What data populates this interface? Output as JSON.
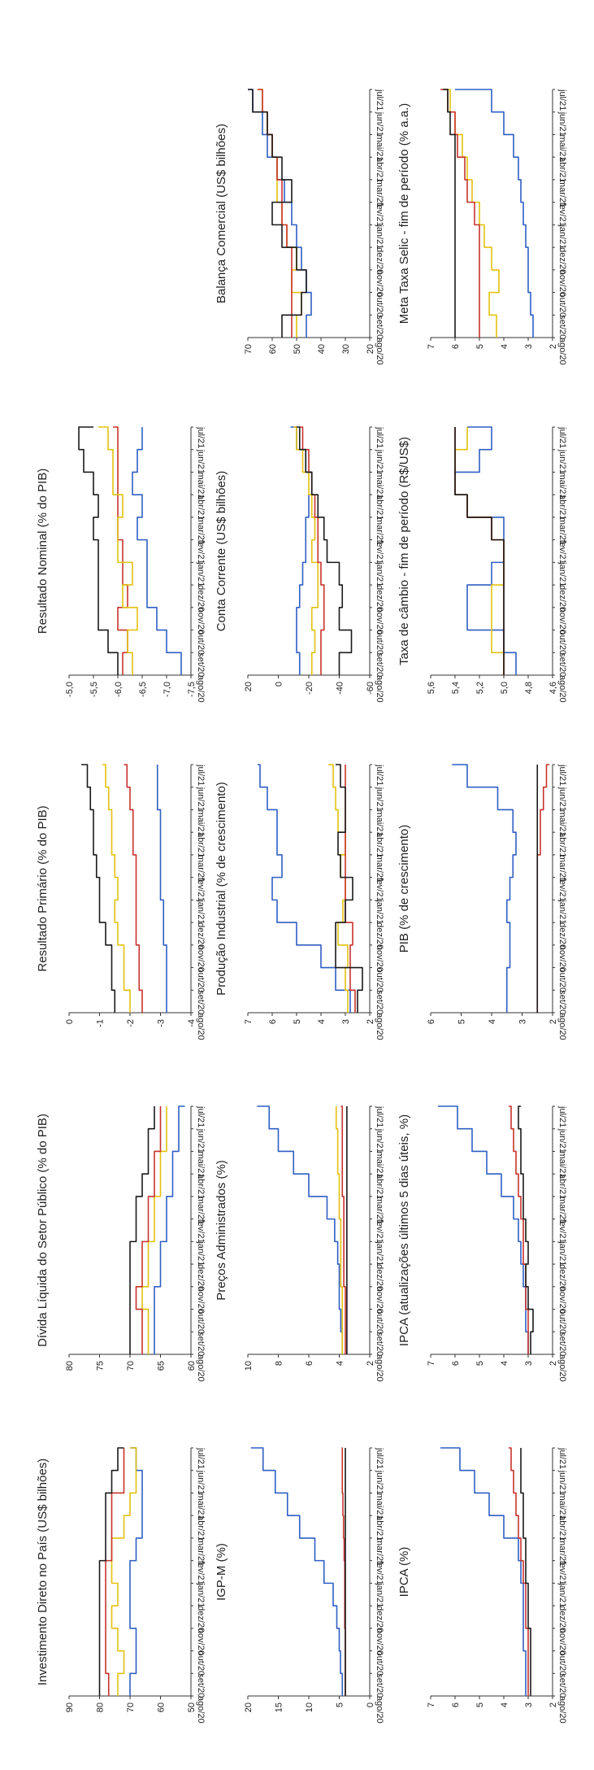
{
  "colors": {
    "blue": "#2f5fc4",
    "red": "#c8332c",
    "yellow": "#e3c10f",
    "black": "#1a1a1a",
    "axis": "#333333"
  },
  "months": [
    "ago/20",
    "set/20",
    "out/20",
    "nov/20",
    "dez/20",
    "jan/21",
    "fev/21",
    "mar/21",
    "abr/21",
    "mai/21",
    "jun/21",
    "jul/21"
  ],
  "chart_data": [
    {
      "id": "ipca",
      "type": "line",
      "title": "IPCA (%)",
      "ylim": [
        2,
        7
      ],
      "yticks": [
        "2",
        "3",
        "4",
        "5",
        "6",
        "7"
      ],
      "series": [
        {
          "color": "blue",
          "values": [
            3.1,
            3.1,
            3.2,
            3.2,
            3.2,
            3.3,
            3.4,
            4.0,
            4.6,
            5.2,
            5.8,
            6.6
          ]
        },
        {
          "color": "red",
          "values": [
            3.0,
            3.0,
            3.0,
            3.1,
            3.1,
            3.2,
            3.3,
            3.4,
            3.5,
            3.6,
            3.7,
            3.8
          ]
        },
        {
          "color": "black",
          "values": [
            2.9,
            2.9,
            2.9,
            3.0,
            3.0,
            3.1,
            3.1,
            3.2,
            3.2,
            3.3,
            3.3,
            3.3
          ]
        }
      ]
    },
    {
      "id": "ipca5",
      "type": "line",
      "title": "IPCA (atualizações últimos 5 dias úteis, %)",
      "ylim": [
        2,
        7
      ],
      "yticks": [
        "2",
        "3",
        "4",
        "5",
        "6",
        "7"
      ],
      "series": [
        {
          "color": "blue",
          "values": [
            3.0,
            3.1,
            3.1,
            3.2,
            3.3,
            3.4,
            3.6,
            4.1,
            4.7,
            5.3,
            5.9,
            6.7
          ]
        },
        {
          "color": "red",
          "values": [
            3.0,
            3.0,
            3.1,
            3.1,
            3.2,
            3.2,
            3.3,
            3.4,
            3.5,
            3.6,
            3.7,
            3.8
          ]
        },
        {
          "color": "black",
          "values": [
            2.9,
            2.8,
            3.0,
            3.1,
            3.0,
            3.1,
            3.2,
            3.2,
            3.3,
            3.3,
            3.4,
            3.3
          ]
        }
      ]
    },
    {
      "id": "pib",
      "type": "line",
      "title": "PIB (% de crescimento)",
      "ylim": [
        2,
        6
      ],
      "yticks": [
        "2",
        "3",
        "4",
        "5",
        "6"
      ],
      "series": [
        {
          "color": "blue",
          "values": [
            3.5,
            3.5,
            3.4,
            3.4,
            3.5,
            3.4,
            3.3,
            3.2,
            3.3,
            3.8,
            4.8,
            5.3
          ]
        },
        {
          "color": "red",
          "values": [
            2.5,
            2.5,
            2.5,
            2.5,
            2.5,
            2.5,
            2.5,
            2.4,
            2.4,
            2.3,
            2.2,
            2.1
          ]
        },
        {
          "color": "black",
          "values": [
            2.5,
            2.5,
            2.5,
            2.5,
            2.5,
            2.5,
            2.5,
            2.5,
            2.5,
            2.5,
            2.5,
            2.5
          ]
        }
      ]
    },
    {
      "id": "cambio",
      "type": "line",
      "title": "Taxa de câmbio - fim de período (R$/US$)",
      "ylim": [
        4.6,
        5.6
      ],
      "yticks": [
        "4,6",
        "4,8",
        "5,0",
        "5,2",
        "5,4",
        "5,6"
      ],
      "series": [
        {
          "color": "blue",
          "values": [
            4.9,
            5.0,
            5.3,
            5.3,
            5.1,
            5.0,
            5.0,
            5.3,
            5.4,
            5.2,
            5.1,
            5.3
          ]
        },
        {
          "color": "yellow",
          "values": [
            5.0,
            5.1,
            5.1,
            5.1,
            5.0,
            5.0,
            5.1,
            5.3,
            5.4,
            5.4,
            5.3,
            5.3
          ]
        },
        {
          "color": "red",
          "values": [
            5.0,
            5.0,
            5.0,
            5.0,
            5.0,
            5.0,
            5.1,
            5.3,
            5.4,
            5.4,
            5.4,
            5.4
          ]
        },
        {
          "color": "black",
          "values": [
            5.0,
            5.0,
            5.0,
            5.0,
            5.0,
            5.0,
            5.1,
            5.3,
            5.4,
            5.4,
            5.4,
            5.4
          ]
        }
      ]
    },
    {
      "id": "selic",
      "type": "line",
      "title": "Meta Taxa Selic - fim de período (% a.a.)",
      "ylim": [
        2,
        7
      ],
      "yticks": [
        "2",
        "3",
        "4",
        "5",
        "6",
        "7"
      ],
      "series": [
        {
          "color": "blue",
          "values": [
            2.8,
            2.9,
            3.0,
            3.0,
            3.1,
            3.2,
            3.3,
            3.4,
            3.6,
            4.0,
            4.5,
            6.0
          ]
        },
        {
          "color": "yellow",
          "values": [
            4.3,
            4.6,
            4.2,
            4.5,
            4.8,
            5.0,
            5.3,
            5.5,
            5.7,
            6.0,
            6.2,
            6.5
          ]
        },
        {
          "color": "red",
          "values": [
            5.0,
            5.0,
            5.0,
            5.0,
            5.0,
            5.2,
            5.5,
            5.6,
            5.9,
            6.0,
            6.3,
            6.6
          ]
        },
        {
          "color": "black",
          "values": [
            6.0,
            6.0,
            6.0,
            6.0,
            6.0,
            6.0,
            6.0,
            6.0,
            6.0,
            6.2,
            6.3,
            6.5
          ]
        }
      ]
    },
    {
      "id": "igpm",
      "type": "line",
      "title": "IGP-M (%)",
      "ylim": [
        0,
        20
      ],
      "yticks": [
        "0",
        "5",
        "10",
        "15",
        "20"
      ],
      "series": [
        {
          "color": "blue",
          "values": [
            4.5,
            4.8,
            5.0,
            5.4,
            6.0,
            7.5,
            9.0,
            11.5,
            13.5,
            15.5,
            17.5,
            19.5
          ]
        },
        {
          "color": "red",
          "values": [
            4.0,
            4.0,
            4.0,
            4.1,
            4.1,
            4.1,
            4.2,
            4.3,
            4.4,
            4.5,
            4.5,
            4.6
          ]
        },
        {
          "color": "black",
          "values": [
            4.0,
            4.0,
            4.0,
            4.0,
            4.0,
            4.0,
            4.0,
            4.0,
            4.0,
            4.0,
            4.0,
            4.0
          ]
        }
      ]
    },
    {
      "id": "adm",
      "type": "line",
      "title": "Preços Administrados (%)",
      "ylim": [
        2,
        10
      ],
      "yticks": [
        "2",
        "4",
        "6",
        "8",
        "10"
      ],
      "series": [
        {
          "color": "blue",
          "values": [
            3.8,
            3.9,
            4.0,
            4.0,
            4.1,
            4.3,
            4.8,
            6.0,
            7.0,
            8.0,
            8.6,
            9.4
          ]
        },
        {
          "color": "yellow",
          "values": [
            3.8,
            3.8,
            3.8,
            3.9,
            3.9,
            3.9,
            4.0,
            4.0,
            4.1,
            4.1,
            4.2,
            4.2
          ]
        },
        {
          "color": "red",
          "values": [
            3.6,
            3.6,
            3.6,
            3.7,
            3.7,
            3.7,
            3.7,
            3.8,
            3.8,
            3.8,
            3.8,
            3.9
          ]
        },
        {
          "color": "black",
          "values": [
            3.5,
            3.5,
            3.5,
            3.5,
            3.5,
            3.5,
            3.5,
            3.5,
            3.5,
            3.5,
            3.5,
            3.5
          ]
        }
      ]
    },
    {
      "id": "prodind",
      "type": "line",
      "title": "Produção Industrial (% de crescimento)",
      "ylim": [
        2,
        7
      ],
      "yticks": [
        "2",
        "3",
        "4",
        "5",
        "6",
        "7"
      ],
      "series": [
        {
          "color": "blue",
          "values": [
            2.8,
            3.4,
            4.0,
            5.0,
            5.8,
            6.0,
            5.6,
            5.8,
            5.8,
            6.2,
            6.5,
            6.6
          ]
        },
        {
          "color": "yellow",
          "values": [
            2.9,
            3.0,
            2.9,
            3.3,
            3.1,
            3.0,
            3.2,
            3.0,
            3.3,
            3.4,
            3.5,
            3.7
          ]
        },
        {
          "color": "red",
          "values": [
            2.6,
            2.8,
            2.8,
            2.7,
            3.0,
            3.0,
            3.0,
            3.0,
            3.0,
            3.0,
            3.0,
            3.0
          ]
        },
        {
          "color": "black",
          "values": [
            2.5,
            2.3,
            3.4,
            3.4,
            3.0,
            2.7,
            3.2,
            3.3,
            3.0,
            3.0,
            3.2,
            3.4
          ]
        }
      ]
    },
    {
      "id": "contacorr",
      "type": "line",
      "title": "Conta Corrente (US$ bilhões)",
      "ylim": [
        -60,
        20
      ],
      "yticks": [
        "-60",
        "-40",
        "-20",
        "0",
        "20"
      ],
      "series": [
        {
          "color": "blue",
          "values": [
            -14,
            -12,
            -12,
            -14,
            -16,
            -18,
            -18,
            -20,
            -22,
            -18,
            -12,
            -8
          ]
        },
        {
          "color": "yellow",
          "values": [
            -22,
            -24,
            -22,
            -26,
            -26,
            -22,
            -24,
            -22,
            -20,
            -16,
            -12,
            -10
          ]
        },
        {
          "color": "red",
          "values": [
            -28,
            -28,
            -30,
            -30,
            -28,
            -26,
            -26,
            -24,
            -22,
            -20,
            -16,
            -14
          ]
        },
        {
          "color": "black",
          "values": [
            -40,
            -48,
            -40,
            -42,
            -40,
            -32,
            -30,
            -26,
            -22,
            -18,
            -14,
            -12
          ]
        }
      ]
    },
    {
      "id": "balanca",
      "type": "line",
      "title": "Balança Comercial (US$ bilhões)",
      "ylim": [
        20,
        70
      ],
      "yticks": [
        "20",
        "30",
        "40",
        "50",
        "60",
        "70"
      ],
      "series": [
        {
          "color": "blue",
          "values": [
            46,
            44,
            46,
            48,
            50,
            52,
            55,
            58,
            62,
            64,
            68,
            70
          ]
        },
        {
          "color": "yellow",
          "values": [
            50,
            48,
            52,
            50,
            54,
            56,
            58,
            58,
            60,
            62,
            64,
            66
          ]
        },
        {
          "color": "red",
          "values": [
            52,
            52,
            52,
            52,
            54,
            56,
            56,
            58,
            60,
            62,
            64,
            66
          ]
        },
        {
          "color": "black",
          "values": [
            56,
            48,
            46,
            50,
            56,
            60,
            52,
            56,
            60,
            62,
            68,
            70
          ]
        }
      ]
    },
    {
      "id": "idp",
      "type": "line",
      "title": "Investimento Direto no País (US$ bilhões)",
      "ylim": [
        50,
        90
      ],
      "yticks": [
        "50",
        "60",
        "70",
        "80",
        "90"
      ],
      "series": [
        {
          "color": "blue",
          "values": [
            70,
            68,
            68,
            70,
            70,
            70,
            68,
            66,
            66,
            66,
            68,
            70
          ]
        },
        {
          "color": "yellow",
          "values": [
            74,
            72,
            74,
            76,
            74,
            76,
            76,
            72,
            70,
            68,
            68,
            70
          ]
        },
        {
          "color": "red",
          "values": [
            77,
            78,
            78,
            78,
            78,
            78,
            76,
            76,
            76,
            72,
            72,
            72
          ]
        },
        {
          "color": "black",
          "values": [
            80,
            80,
            80,
            80,
            80,
            80,
            78,
            78,
            78,
            76,
            74,
            72
          ]
        }
      ]
    },
    {
      "id": "divida",
      "type": "line",
      "title": "Dívida Líquida do Setor Público (% do PIB)",
      "ylim": [
        60,
        80
      ],
      "yticks": [
        "60",
        "65",
        "70",
        "75",
        "80"
      ],
      "series": [
        {
          "color": "blue",
          "values": [
            66,
            66,
            66,
            65,
            65,
            64,
            64,
            63,
            63,
            62,
            62,
            61
          ]
        },
        {
          "color": "yellow",
          "values": [
            67,
            67,
            68,
            67,
            67,
            66,
            66,
            65,
            65,
            64,
            64,
            64
          ]
        },
        {
          "color": "red",
          "values": [
            68,
            68,
            69,
            68,
            68,
            67,
            67,
            66,
            66,
            65,
            65,
            65
          ]
        },
        {
          "color": "black",
          "values": [
            70,
            70,
            70,
            70,
            70,
            69,
            69,
            68,
            67,
            67,
            66,
            66
          ]
        }
      ]
    },
    {
      "id": "primario",
      "type": "line",
      "title": "Resultado Primário (% do PIB)",
      "ylim": [
        -4,
        0
      ],
      "yticks": [
        "-4",
        "-3",
        "-2",
        "-1",
        "0"
      ],
      "series": [
        {
          "color": "blue",
          "values": [
            -3.2,
            -3.2,
            -3.2,
            -3.1,
            -3.1,
            -3.0,
            -3.0,
            -3.0,
            -3.0,
            -2.9,
            -2.9,
            -2.9
          ]
        },
        {
          "color": "red",
          "values": [
            -2.4,
            -2.3,
            -2.3,
            -2.2,
            -2.2,
            -2.2,
            -2.2,
            -2.1,
            -2.1,
            -2.0,
            -1.9,
            -1.8
          ]
        },
        {
          "color": "yellow",
          "values": [
            -2.0,
            -1.8,
            -1.8,
            -1.6,
            -1.5,
            -1.6,
            -1.5,
            -1.4,
            -1.4,
            -1.3,
            -1.2,
            -1.1
          ]
        },
        {
          "color": "black",
          "values": [
            -1.5,
            -1.4,
            -1.4,
            -1.2,
            -1.0,
            -1.0,
            -0.9,
            -0.8,
            -0.8,
            -0.7,
            -0.6,
            -0.4
          ]
        }
      ]
    },
    {
      "id": "nominal",
      "type": "line",
      "title": "Resultado Nominal (% do PIB)",
      "ylim": [
        -7.5,
        -5.0
      ],
      "yticks": [
        "-7,5",
        "-7,0",
        "-6,5",
        "-6,0",
        "-5,5",
        "-5,0"
      ],
      "series": [
        {
          "color": "blue",
          "values": [
            -7.3,
            -7.0,
            -6.8,
            -6.6,
            -6.6,
            -6.6,
            -6.4,
            -6.5,
            -6.3,
            -6.4,
            -6.5,
            -6.5
          ]
        },
        {
          "color": "red",
          "values": [
            -6.1,
            -6.2,
            -6.0,
            -6.2,
            -6.1,
            -6.1,
            -6.0,
            -6.0,
            -6.0,
            -6.0,
            -6.0,
            -5.9
          ]
        },
        {
          "color": "yellow",
          "values": [
            -6.3,
            -6.2,
            -6.4,
            -6.1,
            -6.3,
            -6.0,
            -6.0,
            -6.1,
            -5.9,
            -5.9,
            -5.8,
            -5.6
          ]
        },
        {
          "color": "black",
          "values": [
            -6.0,
            -5.8,
            -5.6,
            -5.6,
            -5.6,
            -5.6,
            -5.5,
            -5.6,
            -5.5,
            -5.3,
            -5.2,
            -5.5
          ]
        }
      ]
    }
  ]
}
